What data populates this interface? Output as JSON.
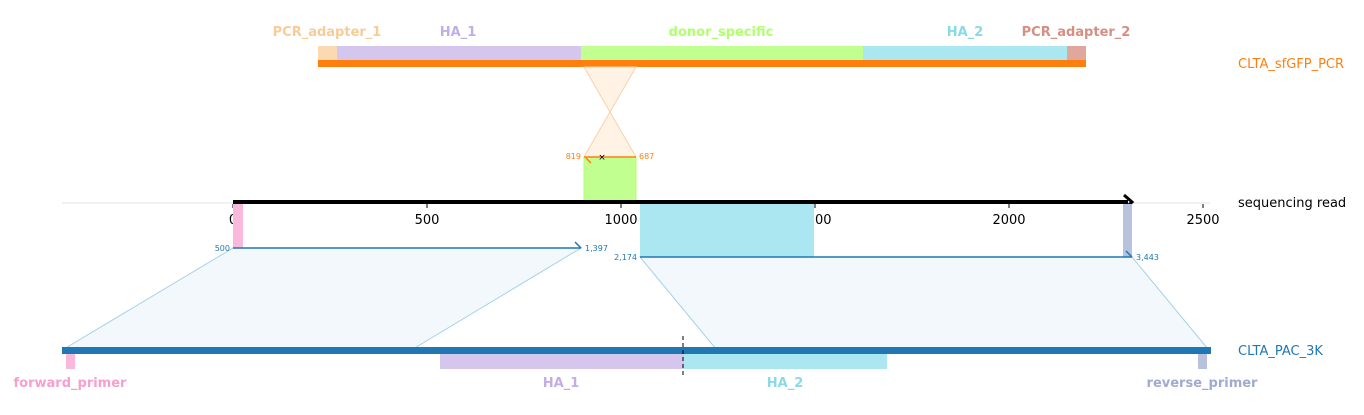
{
  "targets": {
    "top": {
      "name": "CLTA_sfGFP_PCR",
      "color": "#ff7f0e",
      "features": [
        {
          "label": "PCR_adapter_1",
          "color": "#fbd9b3",
          "text_color": "#f8cc96"
        },
        {
          "label": "HA_1",
          "color": "#d5c6ee",
          "text_color": "#c2aee6"
        },
        {
          "label": "donor_specific",
          "color": "#c2ff91",
          "text_color": "#b1ff70"
        },
        {
          "label": "HA_2",
          "color": "#aae7f0",
          "text_color": "#8ad9e6"
        },
        {
          "label": "PCR_adapter_2",
          "color": "#e0a79d",
          "text_color": "#d68f82"
        }
      ],
      "alignment": {
        "start_label": "819",
        "end_label": "687"
      }
    },
    "bottom": {
      "name": "CLTA_PAC_3K",
      "color": "#1f77b4",
      "features": [
        {
          "label": "forward_primer",
          "color": "#f8b9dd",
          "text_color": "#f5a0d0"
        },
        {
          "label": "HA_1",
          "color": "#d5c6ee",
          "text_color": "#c2aee6"
        },
        {
          "label": "HA_2",
          "color": "#aae7f0",
          "text_color": "#8ad9e6"
        },
        {
          "label": "reverse_primer",
          "color": "#b8c2dd",
          "text_color": "#9fabcf"
        }
      ],
      "alignments": [
        {
          "start_label": "500",
          "end_label": "1,397"
        },
        {
          "start_label": "2,174",
          "end_label": "3,443"
        }
      ]
    }
  },
  "read": {
    "name": "sequencing read",
    "ticks": [
      "0",
      "500",
      "1000",
      "1500",
      "2000",
      "2500"
    ]
  }
}
